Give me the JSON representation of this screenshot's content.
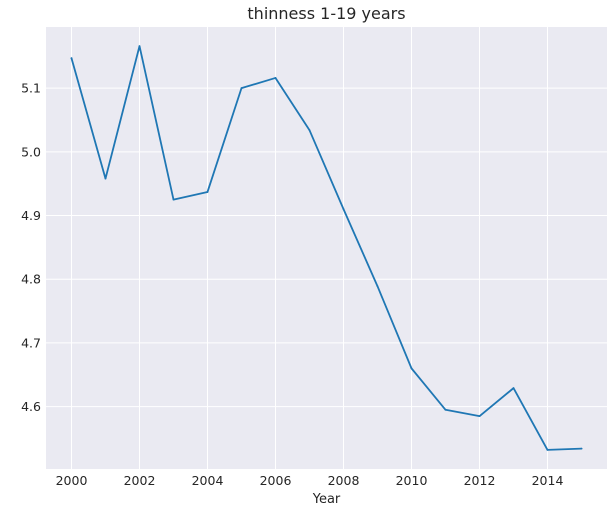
{
  "chart_data": {
    "type": "line",
    "title": "thinness  1-19 years",
    "xlabel": "Year",
    "ylabel": "",
    "x": [
      2000,
      2001,
      2002,
      2003,
      2004,
      2005,
      2006,
      2007,
      2008,
      2009,
      2010,
      2011,
      2012,
      2013,
      2014,
      2015
    ],
    "series": [
      {
        "values": [
          5.147,
          4.958,
          5.166,
          4.925,
          4.937,
          5.1,
          5.116,
          5.034,
          4.91,
          4.789,
          4.66,
          4.595,
          4.585,
          4.629,
          4.532,
          4.534
        ]
      }
    ],
    "xticks": [
      2000,
      2002,
      2004,
      2006,
      2008,
      2010,
      2012,
      2014
    ],
    "yticks": [
      4.6,
      4.7,
      4.8,
      4.9,
      5.0,
      5.1
    ],
    "xlim": [
      1999.25,
      2015.75
    ],
    "ylim": [
      4.502,
      5.196
    ],
    "grid": true,
    "colors": {
      "background": "#eaeaf2",
      "grid": "#ffffff",
      "line": "#1f77b4",
      "text": "#262626"
    }
  }
}
